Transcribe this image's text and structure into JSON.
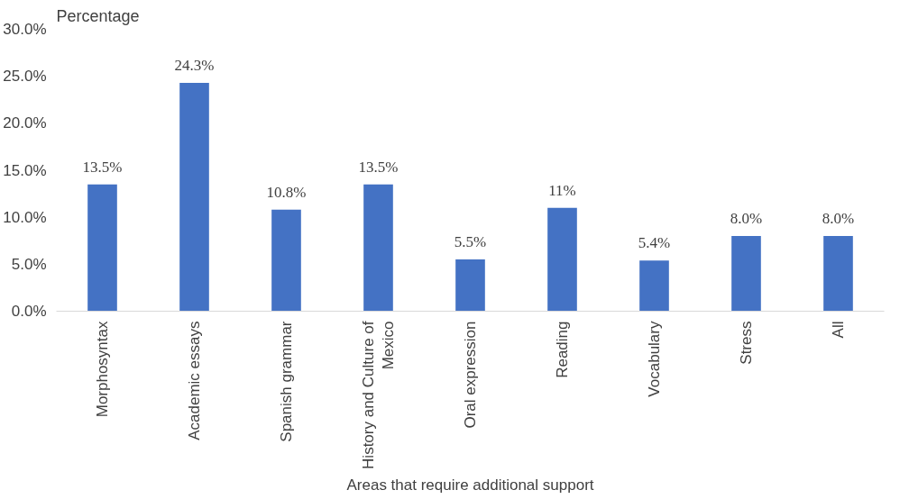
{
  "chart_data": {
    "type": "bar",
    "ylabel": "Percentage",
    "xlabel": "Areas that require additional support",
    "categories": [
      "Morphosyntax",
      "Academic essays",
      "Spanish grammar",
      "History and Culture of Mexico",
      "Oral expression",
      "Reading",
      "Vocabulary",
      "Stress",
      "All"
    ],
    "values": [
      13.5,
      24.3,
      10.8,
      13.5,
      5.5,
      11,
      5.4,
      8.0,
      8.0
    ],
    "value_labels": [
      "13.5%",
      "24.3%",
      "10.8%",
      "13.5%",
      "5.5%",
      "11%",
      "5.4%",
      "8.0%",
      "8.0%"
    ],
    "color": "#4472c4",
    "ylim": [
      0,
      30
    ],
    "yticks": [
      {
        "value": 0,
        "label": "0.0%"
      },
      {
        "value": 5,
        "label": "5.0%"
      },
      {
        "value": 10,
        "label": "10.0%"
      },
      {
        "value": 15,
        "label": "15.0%"
      },
      {
        "value": 20,
        "label": "20.0%"
      },
      {
        "value": 25,
        "label": "25.0%"
      },
      {
        "value": 30,
        "label": "30.0%"
      }
    ],
    "grid": false
  }
}
